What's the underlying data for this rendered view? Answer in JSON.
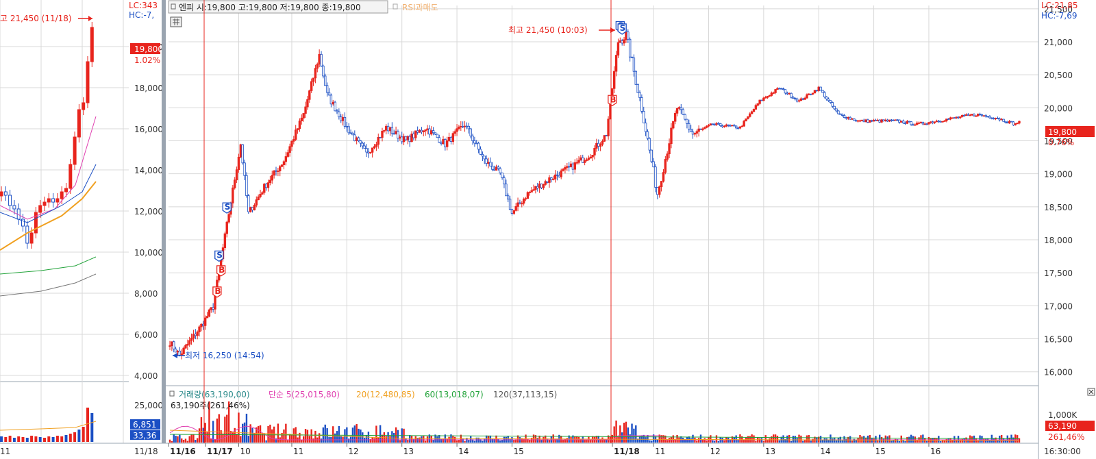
{
  "colors": {
    "up": "#e8241d",
    "down": "#1b4fc4",
    "grid": "#d8d8d8",
    "axis_bg": "#ffffff",
    "pane_border": "#9aa4b0",
    "ma5": "#e040b0",
    "ma20": "#f0a020",
    "ma60": "#22a33a",
    "ma120": "#808080",
    "marker_high": "#e8241d",
    "marker_low": "#1b4fc4",
    "rsi": "#f0b070"
  },
  "left_panel": {
    "lc": "LC:343",
    "hc": "HC:-7,",
    "high_note": "고 21,450 (11/18)",
    "price_badge": "19,800",
    "pct_badge": "1.02%",
    "vol_badge1": "6,851",
    "vol_badge2": "33,36",
    "date_labels": [
      "11",
      "11/18"
    ]
  },
  "header": {
    "info": "엔피 시:19,800 고:19,800 저:19,800 종:19,800",
    "rsi": "RSI과매도"
  },
  "right_axis": {
    "lc": "LC:21,85",
    "hc": "HC:-7,69",
    "price_badge": "19,800",
    "pct_badge": "0.76%",
    "vol_unit": "1,000K",
    "vol_badge": "63,190",
    "vol_pct_badge": "261,46%",
    "time_label": "16:30:00"
  },
  "annotations": {
    "high": "최고 21,450 (10:03)",
    "low": "최저 16,250 (14:54)"
  },
  "volume_legend": {
    "vol": "거래량(63,190,00)",
    "ma5": "단순 5(25,015,80)",
    "ma20": "20(12,480,85)",
    "ma60": "60(13,018,07)",
    "ma120": "120(37,113,15)",
    "vol_line2": "63,190주(261,46%)"
  },
  "chart_data": [
    {
      "type": "candlestick",
      "title": "",
      "y_ticks": [
        16000,
        16500,
        17000,
        17500,
        18000,
        18500,
        19000,
        19500,
        20000,
        20500,
        21000,
        21500
      ],
      "y_tick_labels": [
        "16,000",
        "16,500",
        "17,000",
        "17,500",
        "18,000",
        "18,500",
        "19,000",
        "19,500",
        "20,000",
        "20,500",
        "21,000",
        "21,500"
      ],
      "ylim": [
        15800,
        21550
      ],
      "x_tick_labels": [
        "11/16",
        "11/17",
        "10",
        "11",
        "12",
        "13",
        "14",
        "15",
        "11/18",
        "11",
        "12",
        "13",
        "14",
        "15",
        "16"
      ],
      "anchors": [
        {
          "i": 0,
          "p": 16450
        },
        {
          "i": 5,
          "p": 16250
        },
        {
          "i": 16,
          "p": 16700
        },
        {
          "i": 22,
          "p": 16990
        },
        {
          "i": 30,
          "p": 18400
        },
        {
          "i": 36,
          "p": 19450
        },
        {
          "i": 40,
          "p": 18400
        },
        {
          "i": 48,
          "p": 18800
        },
        {
          "i": 58,
          "p": 19200
        },
        {
          "i": 68,
          "p": 19900
        },
        {
          "i": 76,
          "p": 20800
        },
        {
          "i": 80,
          "p": 20200
        },
        {
          "i": 90,
          "p": 19700
        },
        {
          "i": 100,
          "p": 19300
        },
        {
          "i": 110,
          "p": 19700
        },
        {
          "i": 120,
          "p": 19500
        },
        {
          "i": 130,
          "p": 19700
        },
        {
          "i": 140,
          "p": 19450
        },
        {
          "i": 150,
          "p": 19750
        },
        {
          "i": 160,
          "p": 19200
        },
        {
          "i": 168,
          "p": 19000
        },
        {
          "i": 174,
          "p": 18400
        },
        {
          "i": 182,
          "p": 18700
        },
        {
          "i": 192,
          "p": 18900
        },
        {
          "i": 204,
          "p": 19100
        },
        {
          "i": 214,
          "p": 19300
        },
        {
          "i": 222,
          "p": 19600
        },
        {
          "i": 228,
          "p": 21000
        },
        {
          "i": 232,
          "p": 21100
        },
        {
          "i": 240,
          "p": 20000
        },
        {
          "i": 248,
          "p": 18700
        },
        {
          "i": 254,
          "p": 19500
        },
        {
          "i": 258,
          "p": 20000
        },
        {
          "i": 266,
          "p": 19600
        },
        {
          "i": 276,
          "p": 19750
        },
        {
          "i": 290,
          "p": 19700
        },
        {
          "i": 300,
          "p": 20100
        },
        {
          "i": 310,
          "p": 20300
        },
        {
          "i": 320,
          "p": 20100
        },
        {
          "i": 330,
          "p": 20300
        },
        {
          "i": 340,
          "p": 19900
        },
        {
          "i": 350,
          "p": 19800
        },
        {
          "i": 360,
          "p": 19800
        },
        {
          "i": 370,
          "p": 19800
        },
        {
          "i": 380,
          "p": 19750
        },
        {
          "i": 390,
          "p": 19800
        },
        {
          "i": 400,
          "p": 19850
        },
        {
          "i": 410,
          "p": 19900
        },
        {
          "i": 420,
          "p": 19850
        },
        {
          "i": 430,
          "p": 19750
        },
        {
          "i": 432,
          "p": 19800
        }
      ],
      "signals": [
        {
          "i": 24,
          "type": "B"
        },
        {
          "i": 26,
          "type": "B"
        },
        {
          "i": 25,
          "type": "S"
        },
        {
          "i": 29,
          "type": "S"
        },
        {
          "i": 225,
          "type": "B"
        },
        {
          "i": 229,
          "type": "S"
        },
        {
          "i": 230,
          "type": "S"
        }
      ]
    },
    {
      "type": "bar",
      "title": "",
      "series": [
        {
          "name": "거래량"
        }
      ]
    }
  ]
}
